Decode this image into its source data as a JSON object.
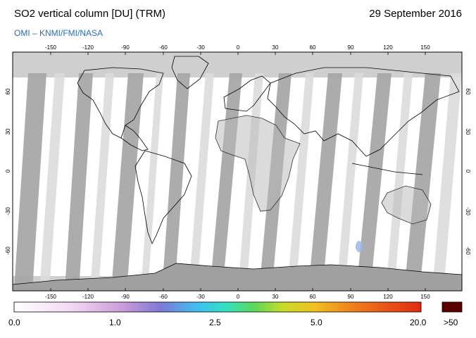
{
  "header": {
    "title": "SO2 vertical column [DU] (TRM)",
    "date": "29 September 2016",
    "credit": "OMI  –  KNMI/FMI/NASA"
  },
  "map": {
    "projection": "equirectangular",
    "lon_range": [
      -180,
      180
    ],
    "lat_range": [
      -90,
      90
    ],
    "lon_ticks": [
      "-150",
      "-120",
      "-90",
      "-60",
      "-30",
      "0",
      "30",
      "60",
      "90",
      "120",
      "150"
    ],
    "lat_ticks": [
      "60",
      "30",
      "0",
      "-30",
      "-60"
    ],
    "colors": {
      "background": "#ffffff",
      "no_data": "#cfcfcf",
      "swath_gap": "#a8a8a8",
      "coastline": "#000000"
    }
  },
  "colorbar": {
    "labels": [
      "0.0",
      "1.0",
      "2.5",
      "5.0",
      "20.0"
    ],
    "overflow_label": ">50",
    "overflow_color": "#5a0000",
    "gradient": [
      "#ffffff",
      "#f3d9f3",
      "#c99ad9",
      "#7f78d8",
      "#3fc0f0",
      "#33e0c0",
      "#5bd85b",
      "#c8dc2a",
      "#f0c020",
      "#f07a1c",
      "#e02a12"
    ]
  }
}
